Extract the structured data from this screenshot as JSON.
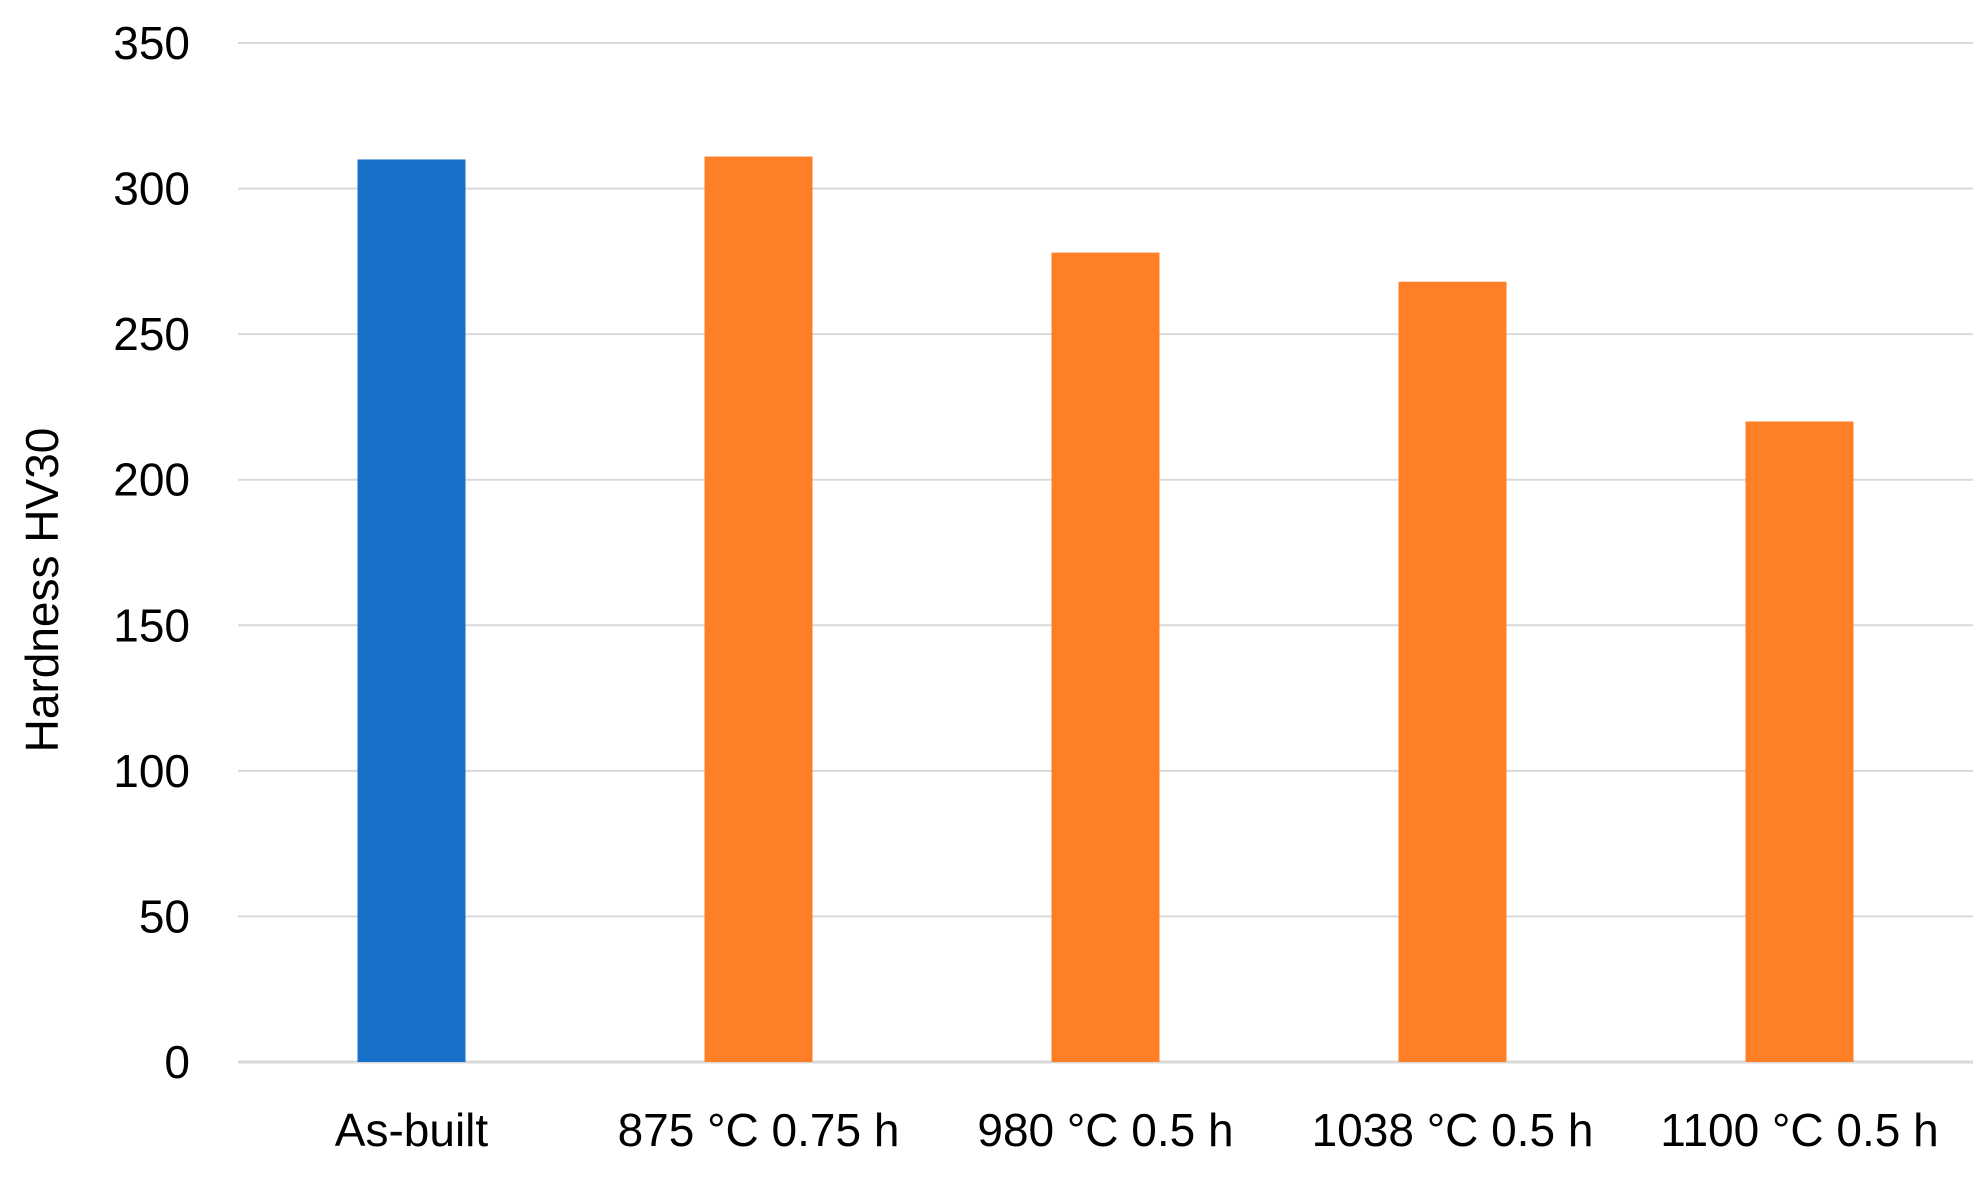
{
  "chart_data": {
    "type": "bar",
    "title": "",
    "xlabel": "",
    "ylabel": "Hardness HV30",
    "ylim": [
      0,
      350
    ],
    "yticks": [
      0,
      50,
      100,
      150,
      200,
      250,
      300,
      350
    ],
    "grid": true,
    "legend": "none",
    "categories": [
      "As-built",
      "875 °C 0.75 h",
      "980 °C 0.5 h",
      "1038 °C 0.5 h",
      "1100 °C 0.5 h"
    ],
    "values": [
      310,
      311,
      278,
      268,
      220
    ],
    "colors": [
      "#1771c9",
      "#fe7f26",
      "#fe7f26",
      "#fe7f26",
      "#fe7f26"
    ]
  }
}
